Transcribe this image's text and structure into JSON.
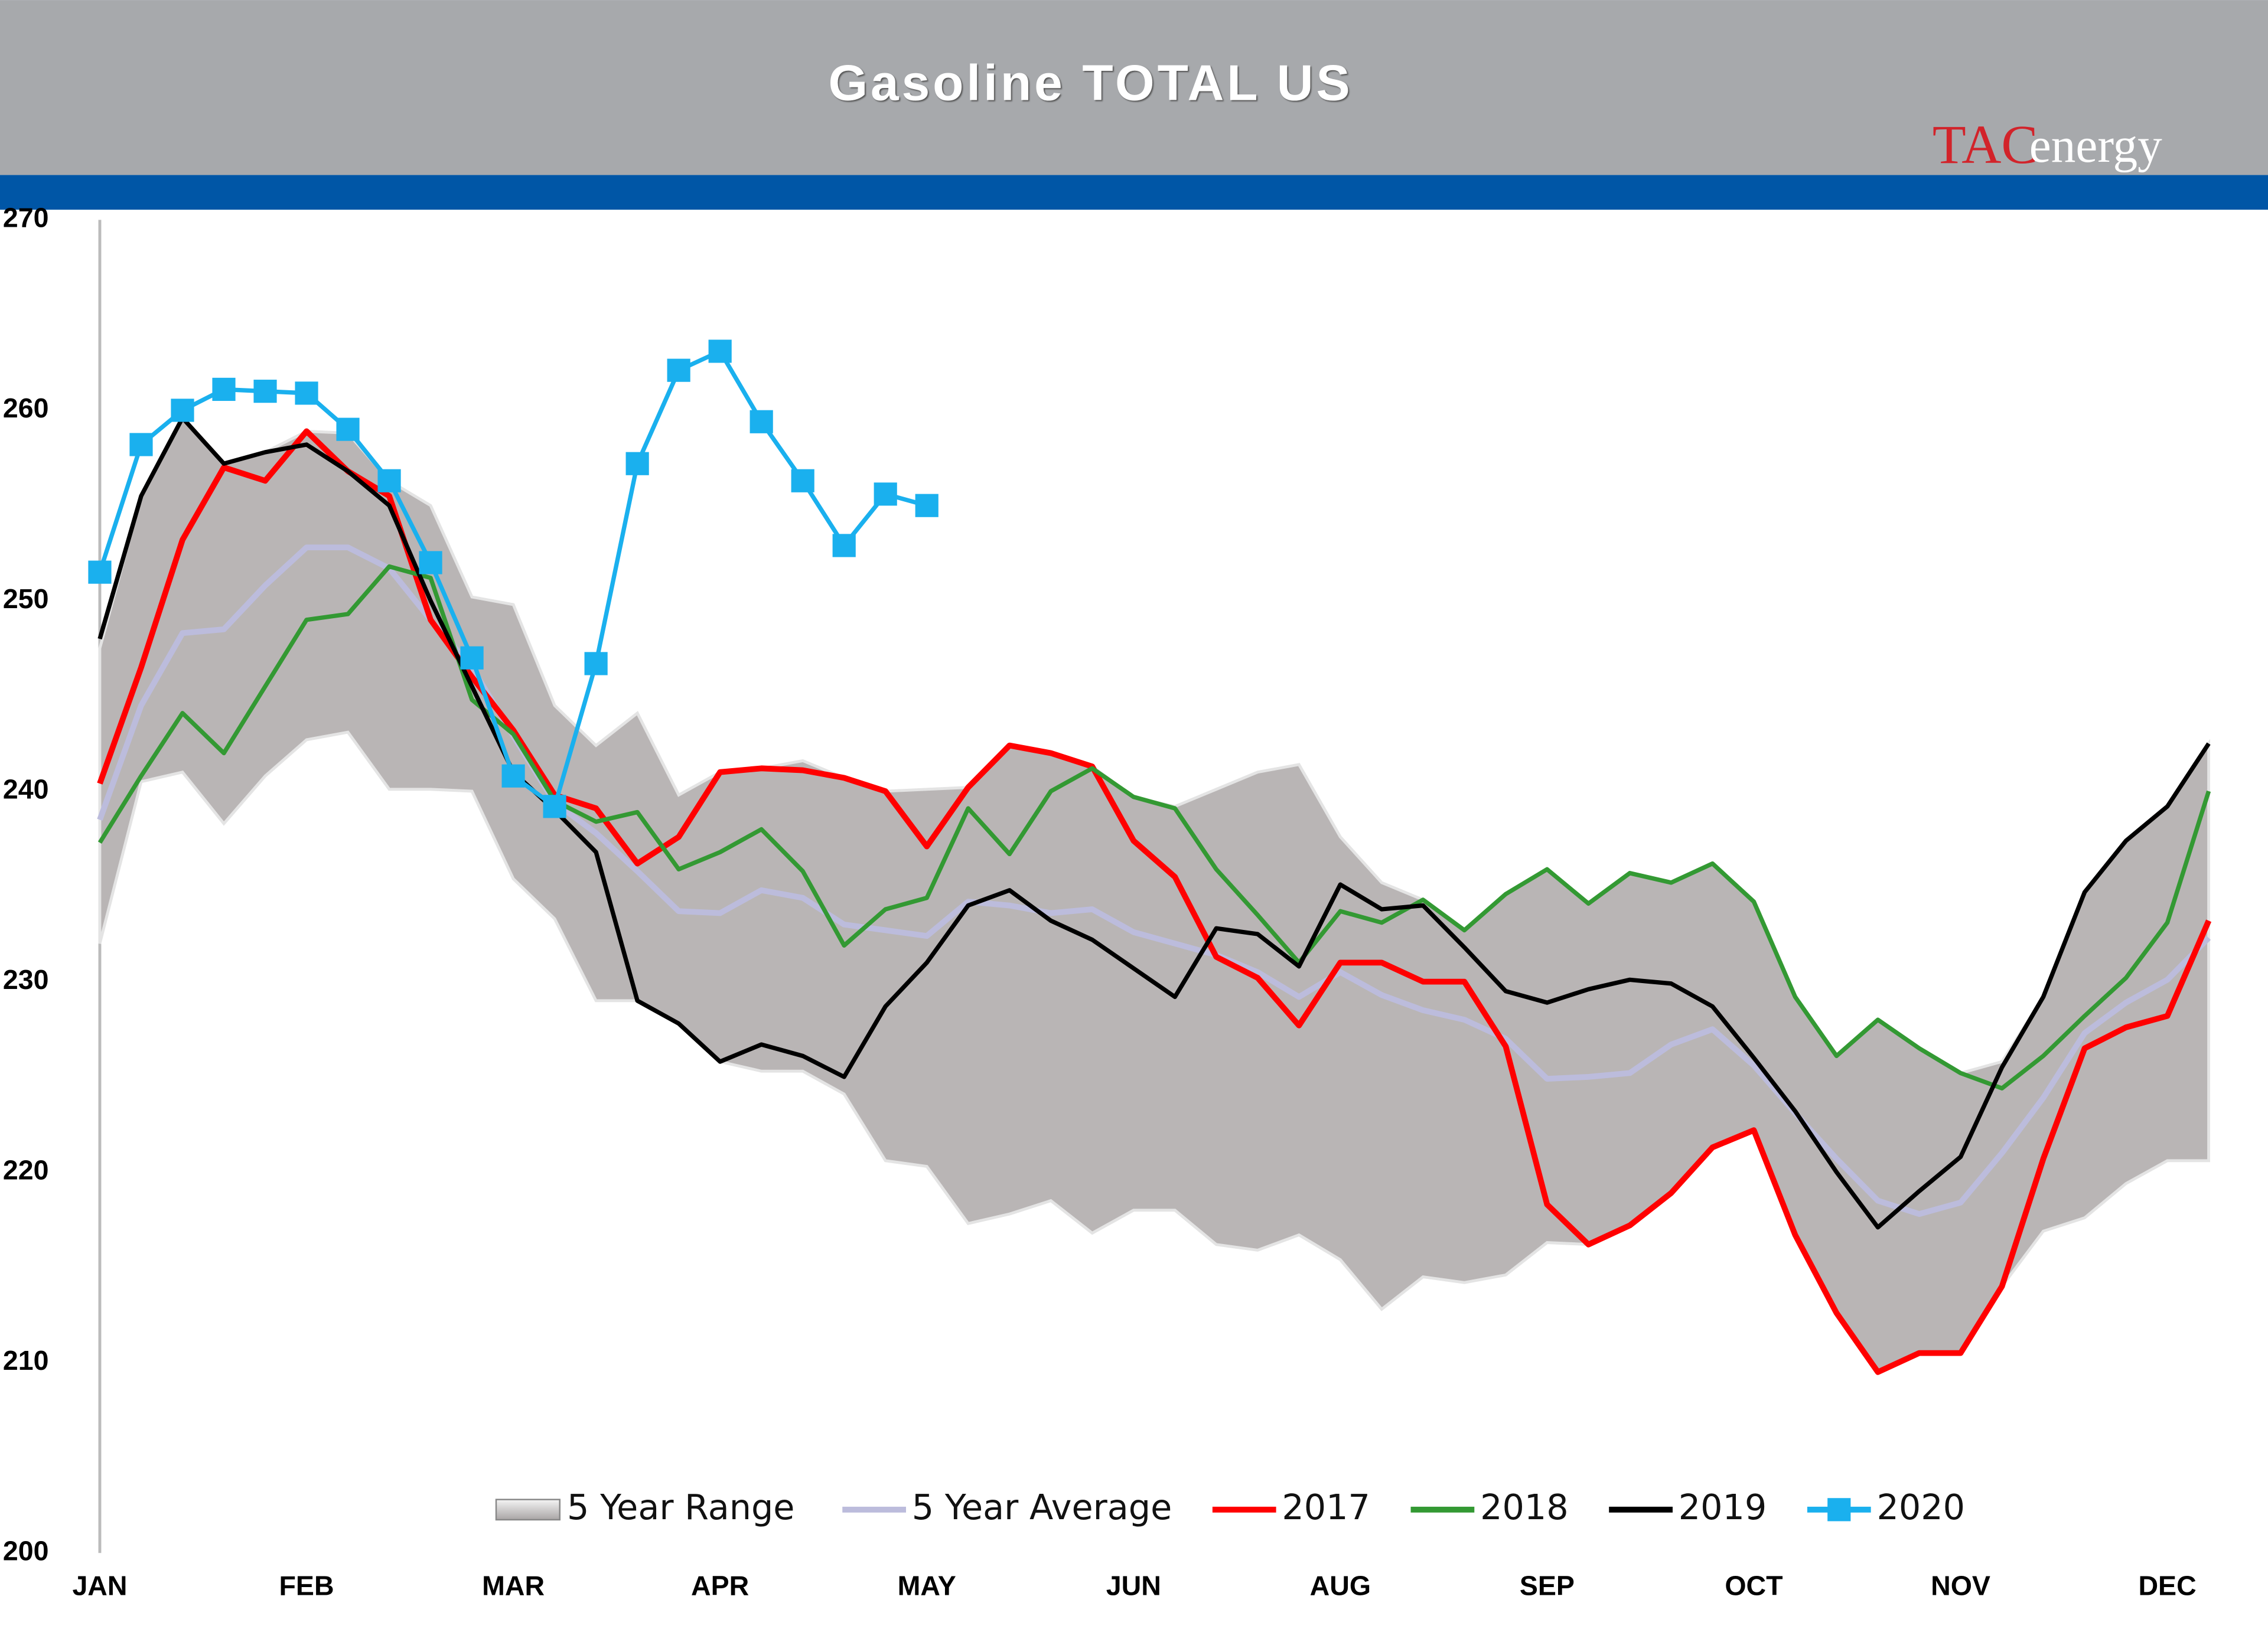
{
  "chart_data": {
    "type": "line",
    "title": "Gasoline TOTAL US",
    "logo": {
      "mark": "TAC",
      "text": "energy"
    },
    "categories": [
      "JAN",
      null,
      null,
      null,
      null,
      "FEB",
      null,
      null,
      null,
      null,
      "MAR",
      null,
      null,
      null,
      null,
      "APR",
      null,
      null,
      null,
      null,
      "MAY",
      null,
      null,
      null,
      null,
      "JUN",
      null,
      null,
      null,
      null,
      "AUG",
      null,
      null,
      null,
      null,
      "SEP",
      null,
      null,
      null,
      null,
      "OCT",
      null,
      null,
      null,
      null,
      "NOV",
      null,
      null,
      null,
      null,
      "DEC",
      null
    ],
    "ylim": [
      200,
      270
    ],
    "yticks": [
      200,
      210,
      220,
      230,
      240,
      250,
      260,
      270
    ],
    "grid": false,
    "range": {
      "name": "5 Year Range",
      "color": "#b9b5b5",
      "high": [
        247.5,
        255.5,
        259.6,
        257.2,
        257.8,
        258.9,
        258.8,
        256.3,
        255,
        250.2,
        249.8,
        244.5,
        242.4,
        244.1,
        239.8,
        241,
        241.2,
        241.6,
        240.7,
        240,
        240.1,
        240.2,
        242.4,
        242,
        241.3,
        239.7,
        239.2,
        240.1,
        241,
        241.4,
        237.6,
        235.2,
        234.3,
        232.7,
        234.6,
        235.9,
        234.1,
        235.7,
        235.2,
        236.2,
        234.2,
        229.2,
        226.1,
        228,
        226.5,
        225.2,
        225.8,
        229.2,
        234.7,
        237.4,
        239.2,
        242.5
      ],
      "low": [
        232,
        240.5,
        241,
        238.3,
        240.8,
        242.7,
        243.1,
        240.1,
        240.1,
        240,
        235.4,
        233.3,
        229,
        229,
        227.8,
        225.8,
        225.3,
        225.3,
        224.1,
        220.6,
        220.3,
        217.3,
        217.8,
        218.5,
        216.8,
        218,
        218,
        216.2,
        215.9,
        216.7,
        215.4,
        212.8,
        214.5,
        214.2,
        214.6,
        216.3,
        216.2,
        217.2,
        218.9,
        221.3,
        222.2,
        216.7,
        212.6,
        209.5,
        210.5,
        210.5,
        214,
        216.9,
        217.6,
        219.4,
        220.6,
        220.6
      ]
    },
    "series": [
      {
        "name": "5 Year Average",
        "color": "#bcbcdc",
        "values": [
          238.5,
          244.5,
          248.3,
          248.5,
          250.8,
          252.8,
          252.8,
          251.7,
          249,
          246.5,
          242.9,
          239.4,
          237.8,
          235.8,
          233.7,
          233.6,
          234.8,
          234.4,
          233,
          232.7,
          232.4,
          234.2,
          234,
          233.6,
          233.8,
          232.6,
          232,
          231.4,
          230.5,
          229.2,
          230.5,
          229.3,
          228.5,
          228,
          227,
          224.9,
          225,
          225.2,
          226.7,
          227.5,
          225.6,
          223.1,
          220.7,
          218.5,
          217.8,
          218.4,
          221,
          223.9,
          227.3,
          228.9,
          230.1,
          232.3
        ]
      },
      {
        "name": "2017",
        "color": "#ff0000",
        "values": [
          240.4,
          246.5,
          253.2,
          257,
          256.3,
          258.9,
          256.8,
          255.5,
          249,
          246,
          243.2,
          239.8,
          239.1,
          236.2,
          237.6,
          241,
          241.2,
          241.1,
          240.7,
          240,
          237.1,
          240.2,
          242.4,
          242,
          241.3,
          237.4,
          235.5,
          231.3,
          230.2,
          227.7,
          231,
          231,
          230,
          230,
          226.6,
          218.3,
          216.2,
          217.2,
          218.9,
          221.3,
          222.2,
          216.7,
          212.6,
          209.5,
          210.5,
          210.5,
          214,
          220.7,
          226.5,
          227.6,
          228.2,
          233.2
        ]
      },
      {
        "name": "2018",
        "color": "#339933",
        "values": [
          237.3,
          240.8,
          244.1,
          242,
          245.5,
          249,
          249.3,
          251.8,
          251.2,
          244.8,
          243,
          239.5,
          238.4,
          238.9,
          235.9,
          236.8,
          238,
          235.8,
          231.9,
          233.8,
          234.4,
          239.1,
          236.7,
          240,
          241.2,
          239.7,
          239.1,
          235.9,
          233.5,
          231,
          233.7,
          233.1,
          234.3,
          232.7,
          234.6,
          235.9,
          234.1,
          235.7,
          235.2,
          236.2,
          234.2,
          229.2,
          226.1,
          228,
          226.5,
          225.2,
          224.4,
          226.1,
          228.2,
          230.2,
          233.1,
          240
        ]
      },
      {
        "name": "2019",
        "color": "#000000",
        "values": [
          248,
          255.5,
          259.6,
          257.2,
          257.8,
          258.2,
          256.8,
          255,
          250,
          245.5,
          241,
          239,
          236.8,
          229,
          227.8,
          225.8,
          226.7,
          226.1,
          225,
          228.7,
          231,
          234,
          234.8,
          233.2,
          232.2,
          230.7,
          229.2,
          232.8,
          232.5,
          230.8,
          235.1,
          233.8,
          234,
          231.8,
          229.5,
          228.9,
          229.6,
          230.1,
          229.9,
          228.7,
          226,
          223.2,
          220,
          217.1,
          219,
          220.8,
          225.5,
          229.2,
          234.7,
          237.4,
          239.2,
          242.5
        ]
      },
      {
        "name": "2020",
        "color": "#1ab0ee",
        "markers": true,
        "values": [
          251.5,
          258.2,
          260,
          261.1,
          261,
          260.9,
          259,
          256.3,
          252,
          247,
          240.8,
          239.2,
          246.7,
          257.2,
          262.1,
          263.1,
          259.4,
          256.3,
          252.9,
          255.6,
          255,
          null,
          null,
          null,
          null,
          null,
          null,
          null,
          null,
          null,
          null,
          null,
          null,
          null,
          null,
          null,
          null,
          null,
          null,
          null,
          null,
          null,
          null,
          null,
          null,
          null,
          null,
          null,
          null,
          null,
          null,
          null
        ]
      }
    ]
  }
}
